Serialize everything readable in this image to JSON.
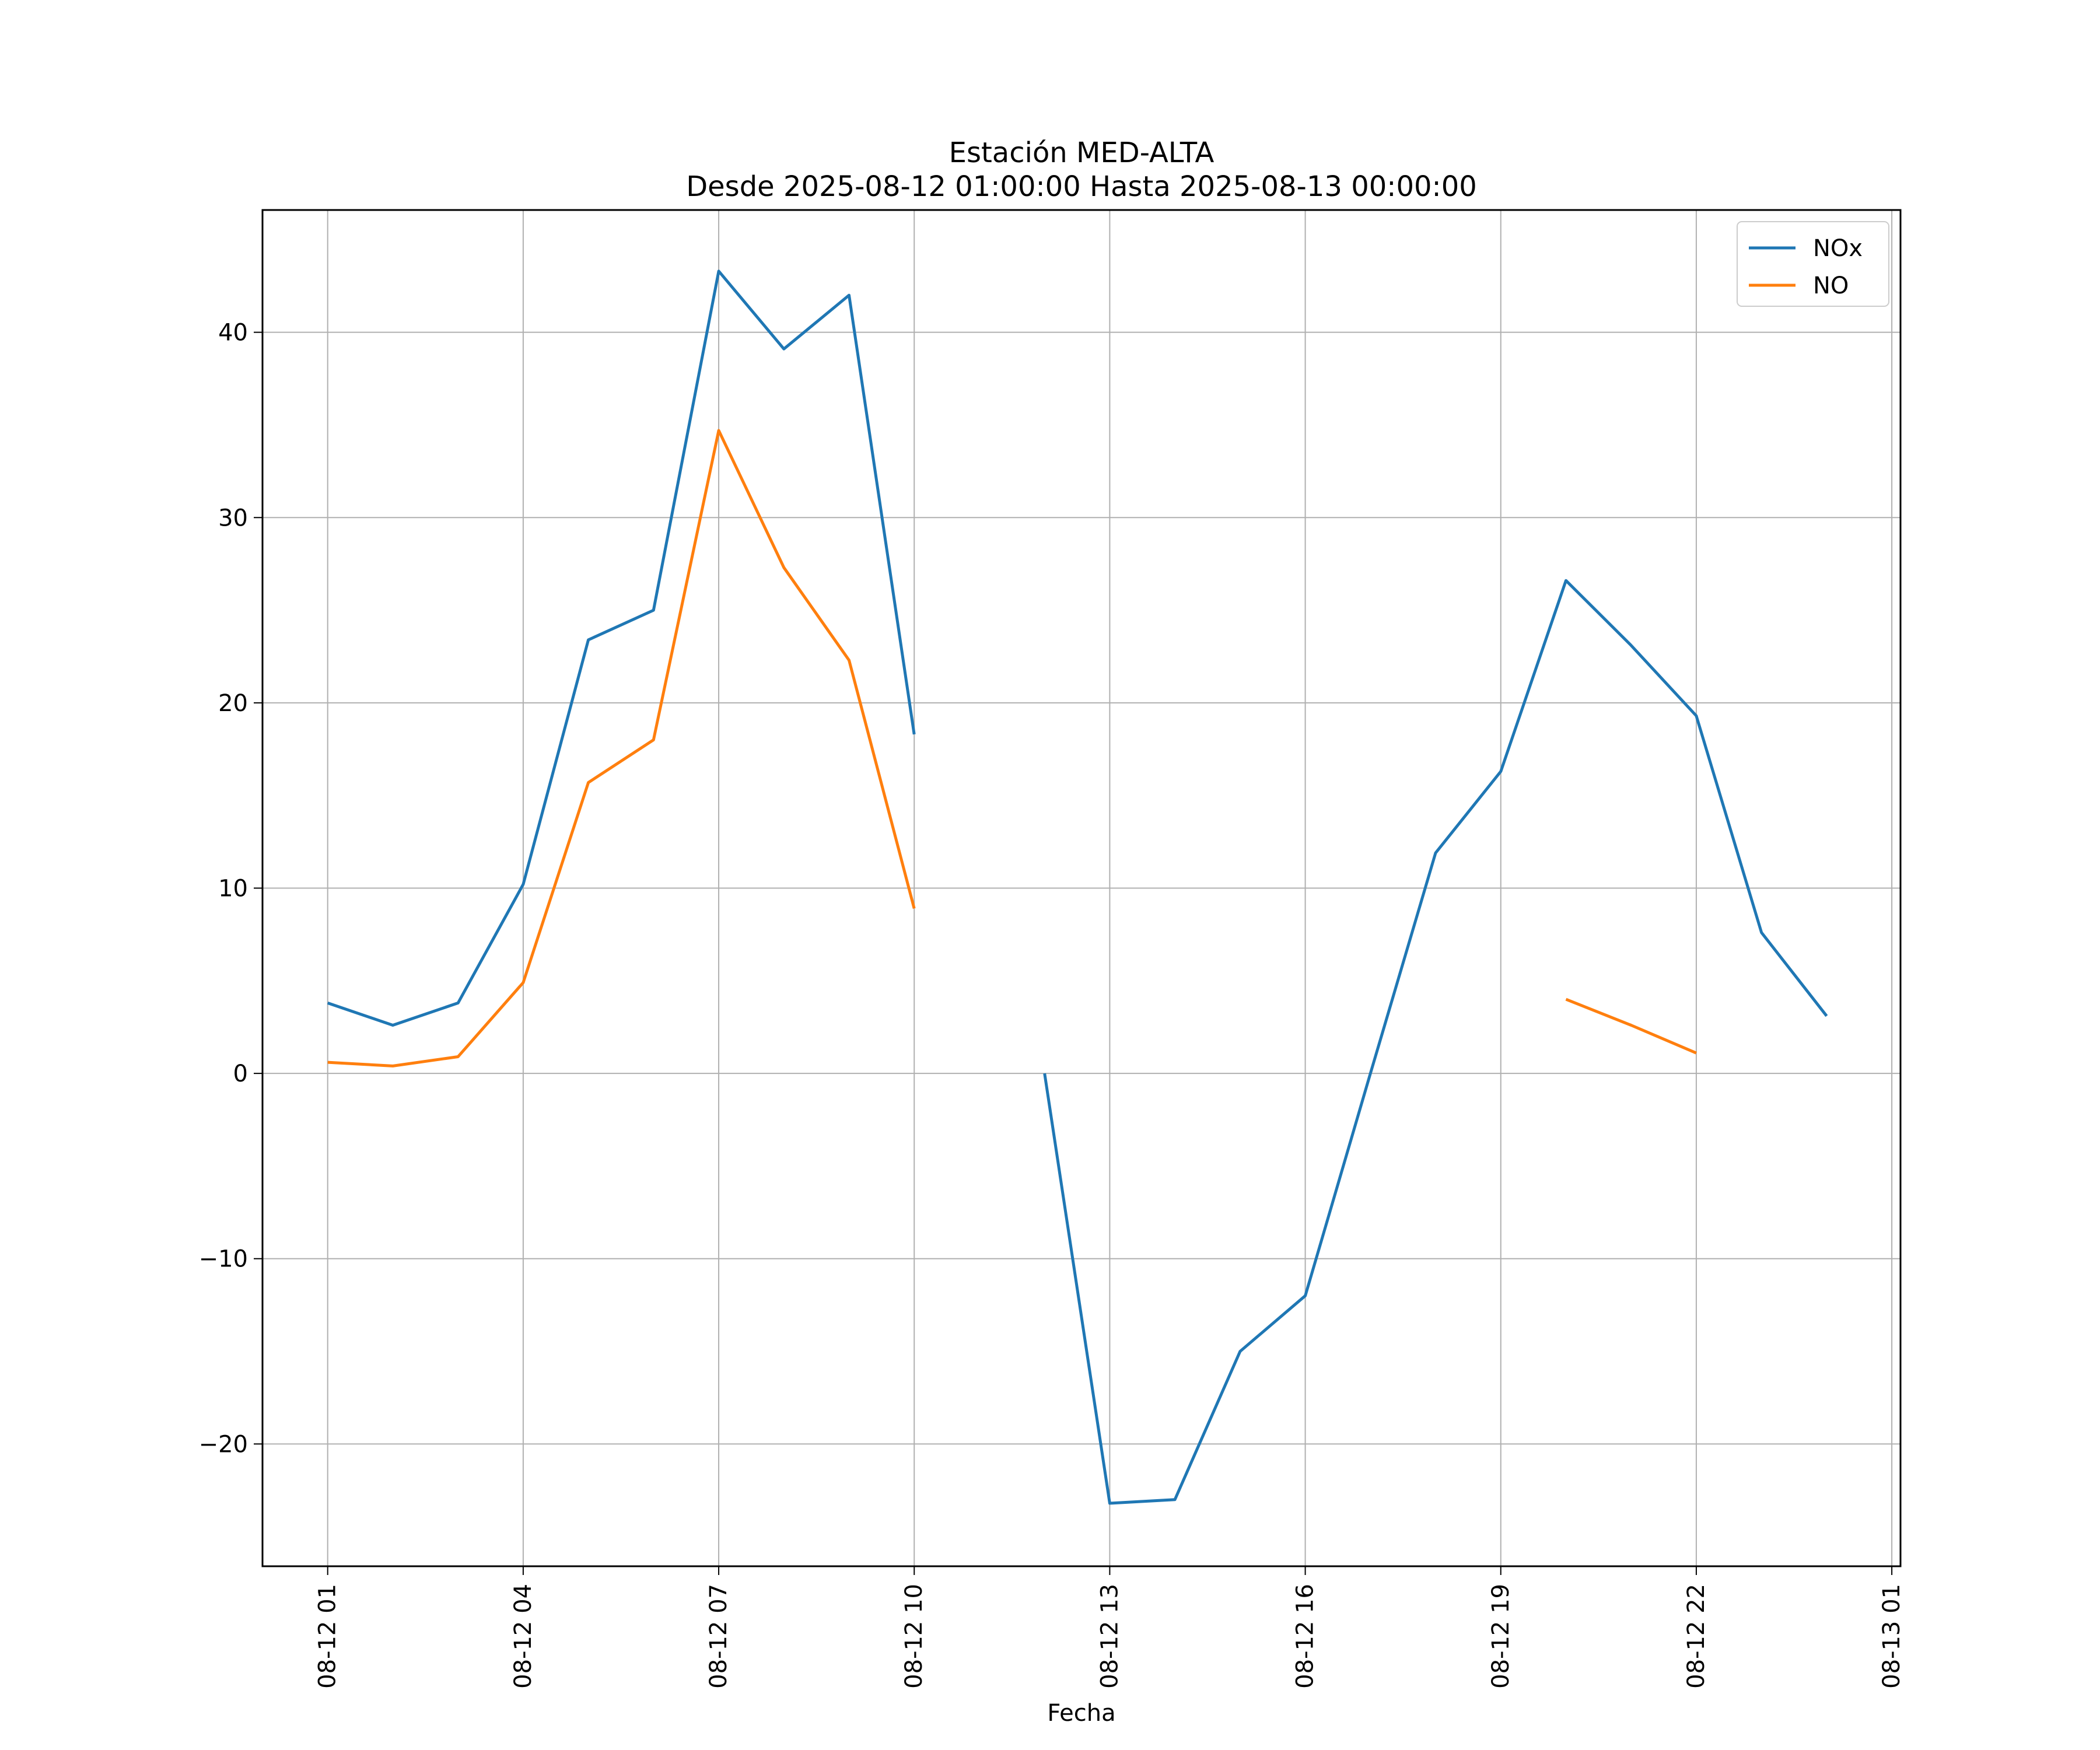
{
  "chart_data": {
    "type": "line",
    "title": "Estación MED-ALTA",
    "subtitle": "Desde 2025-08-12 01:00:00 Hasta 2025-08-13 00:00:00",
    "xlabel": "Fecha",
    "ylabel": "",
    "x_ticks": [
      "08-12 01",
      "08-12 04",
      "08-12 07",
      "08-12 10",
      "08-12 13",
      "08-12 16",
      "08-12 19",
      "08-12 22",
      "08-13 01"
    ],
    "y_ticks": [
      "−20",
      "−10",
      "0",
      "10",
      "20",
      "30",
      "40"
    ],
    "x_range": [
      "2025-08-12 00:00",
      "2025-08-13 01:08"
    ],
    "ylim": [
      -26.6,
      46.6
    ],
    "grid": true,
    "legend_position": "top-right",
    "x": [
      "2025-08-12 01:00",
      "2025-08-12 02:00",
      "2025-08-12 03:00",
      "2025-08-12 04:00",
      "2025-08-12 05:00",
      "2025-08-12 06:00",
      "2025-08-12 07:00",
      "2025-08-12 08:00",
      "2025-08-12 09:00",
      "2025-08-12 10:00",
      "2025-08-12 11:00",
      "2025-08-12 12:00",
      "2025-08-12 13:00",
      "2025-08-12 14:00",
      "2025-08-12 15:00",
      "2025-08-12 16:00",
      "2025-08-12 17:00",
      "2025-08-12 18:00",
      "2025-08-12 19:00",
      "2025-08-12 20:00",
      "2025-08-12 21:00",
      "2025-08-12 22:00",
      "2025-08-12 23:00",
      "2025-08-13 00:00"
    ],
    "series": [
      {
        "name": "NOx",
        "color": "#1f77b4",
        "values": [
          3.8,
          2.6,
          3.8,
          10.2,
          23.4,
          25.0,
          43.3,
          39.1,
          42.0,
          18.3,
          null,
          0.0,
          -23.2,
          -23.0,
          -15.0,
          -12.0,
          0.0,
          11.9,
          16.3,
          26.6,
          23.1,
          19.3,
          7.6,
          3.1
        ]
      },
      {
        "name": "NO",
        "color": "#ff7f0e",
        "values": [
          0.6,
          0.4,
          0.9,
          4.9,
          15.7,
          18.0,
          34.7,
          27.3,
          22.3,
          8.9,
          null,
          null,
          null,
          null,
          null,
          null,
          null,
          null,
          null,
          4.0,
          2.6,
          1.1,
          null,
          null
        ]
      }
    ]
  }
}
